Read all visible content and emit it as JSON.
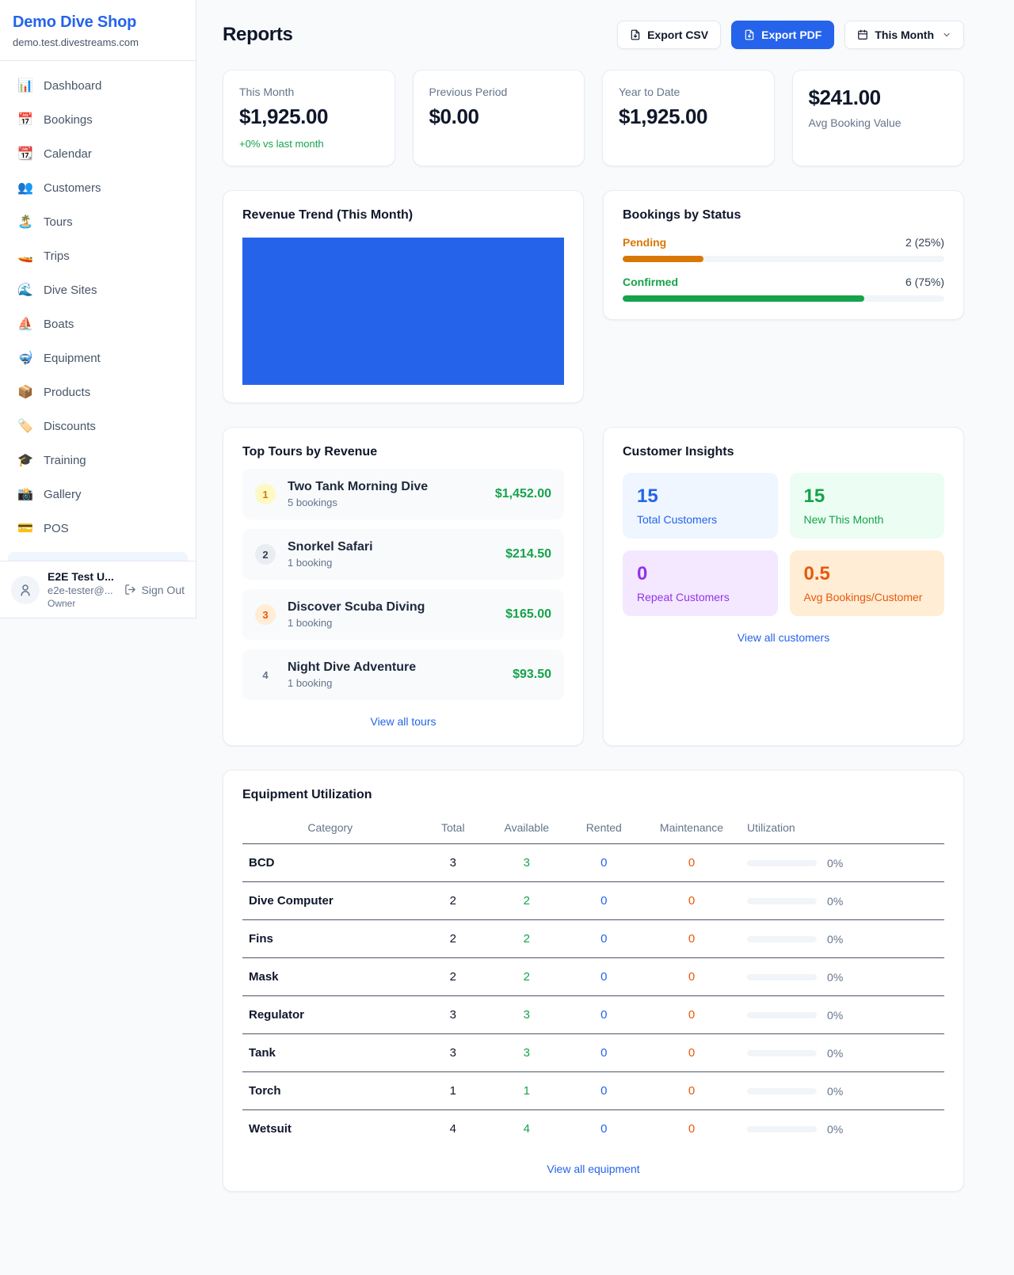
{
  "colors": {
    "accent": "#2563eb",
    "success": "#16a34a",
    "pending": "#d97706",
    "orange": "#ea580c",
    "purple": "#9333ea"
  },
  "sidebar": {
    "title": "Demo Dive Shop",
    "subtitle": "demo.test.divestreams.com",
    "nav": [
      {
        "icon": "📊",
        "label": "Dashboard"
      },
      {
        "icon": "📅",
        "label": "Bookings"
      },
      {
        "icon": "📆",
        "label": "Calendar"
      },
      {
        "icon": "👥",
        "label": "Customers"
      },
      {
        "icon": "🏝️",
        "label": "Tours"
      },
      {
        "icon": "🚤",
        "label": "Trips"
      },
      {
        "icon": "🌊",
        "label": "Dive Sites"
      },
      {
        "icon": "⛵",
        "label": "Boats"
      },
      {
        "icon": "🤿",
        "label": "Equipment"
      },
      {
        "icon": "📦",
        "label": "Products"
      },
      {
        "icon": "🏷️",
        "label": "Discounts"
      },
      {
        "icon": "🎓",
        "label": "Training"
      },
      {
        "icon": "📸",
        "label": "Gallery"
      },
      {
        "icon": "💳",
        "label": "POS"
      }
    ],
    "user": {
      "name": "E2E Test U...",
      "email": "e2e-tester@...",
      "role": "Owner",
      "sign_out": "Sign Out"
    }
  },
  "header": {
    "title": "Reports",
    "export_csv": "Export CSV",
    "export_pdf": "Export PDF",
    "period": "This Month"
  },
  "stats": [
    {
      "label": "This Month",
      "value": "$1,925.00",
      "delta": "+0% vs last month",
      "variant": ""
    },
    {
      "label": "Previous Period",
      "value": "$0.00",
      "variant": ""
    },
    {
      "label": "Year to Date",
      "value": "$1,925.00",
      "variant": ""
    },
    {
      "label": "Avg Booking Value",
      "value": "$241.00",
      "variant": "reverse"
    }
  ],
  "revenue_trend": {
    "title": "Revenue Trend (This Month)",
    "chart_data": {
      "type": "area",
      "fill_color": "#2563eb",
      "note": "solid filled plot area, no visible axes, ticks or labels"
    }
  },
  "bookings_by_status": {
    "title": "Bookings by Status",
    "rows": [
      {
        "label": "Pending",
        "count": "2 (25%)",
        "pct": 25,
        "tone": "tone-pending"
      },
      {
        "label": "Confirmed",
        "count": "6 (75%)",
        "pct": 75,
        "tone": "tone-confirmed"
      }
    ]
  },
  "top_tours": {
    "title": "Top Tours by Revenue",
    "items": [
      {
        "rank": "1",
        "badge": "badge-1",
        "name": "Two Tank Morning Dive",
        "bookings": "5 bookings",
        "revenue": "$1,452.00"
      },
      {
        "rank": "2",
        "badge": "badge-2",
        "name": "Snorkel Safari",
        "bookings": "1 booking",
        "revenue": "$214.50"
      },
      {
        "rank": "3",
        "badge": "badge-3",
        "name": "Discover Scuba Diving",
        "bookings": "1 booking",
        "revenue": "$165.00"
      },
      {
        "rank": "4",
        "badge": "badge-4",
        "name": "Night Dive Adventure",
        "bookings": "1 booking",
        "revenue": "$93.50"
      }
    ],
    "view_all": "View all tours"
  },
  "customer_insights": {
    "title": "Customer Insights",
    "boxes": [
      {
        "value": "15",
        "label": "Total Customers",
        "tone": "tone-blue"
      },
      {
        "value": "15",
        "label": "New This Month",
        "tone": "tone-green"
      },
      {
        "value": "0",
        "label": "Repeat Customers",
        "tone": "tone-purple"
      },
      {
        "value": "0.5",
        "label": "Avg Bookings/Customer",
        "tone": "tone-orange"
      }
    ],
    "view_all": "View all customers"
  },
  "equipment": {
    "title": "Equipment Utilization",
    "headers": [
      "Category",
      "Total",
      "Available",
      "Rented",
      "Maintenance",
      "Utilization"
    ],
    "rows": [
      {
        "category": "BCD",
        "total": "3",
        "available": "3",
        "rented": "0",
        "maintenance": "0",
        "utilization_pct": 0,
        "utilization_label": "0%"
      },
      {
        "category": "Dive Computer",
        "total": "2",
        "available": "2",
        "rented": "0",
        "maintenance": "0",
        "utilization_pct": 0,
        "utilization_label": "0%"
      },
      {
        "category": "Fins",
        "total": "2",
        "available": "2",
        "rented": "0",
        "maintenance": "0",
        "utilization_pct": 0,
        "utilization_label": "0%"
      },
      {
        "category": "Mask",
        "total": "2",
        "available": "2",
        "rented": "0",
        "maintenance": "0",
        "utilization_pct": 0,
        "utilization_label": "0%"
      },
      {
        "category": "Regulator",
        "total": "3",
        "available": "3",
        "rented": "0",
        "maintenance": "0",
        "utilization_pct": 0,
        "utilization_label": "0%"
      },
      {
        "category": "Tank",
        "total": "3",
        "available": "3",
        "rented": "0",
        "maintenance": "0",
        "utilization_pct": 0,
        "utilization_label": "0%"
      },
      {
        "category": "Torch",
        "total": "1",
        "available": "1",
        "rented": "0",
        "maintenance": "0",
        "utilization_pct": 0,
        "utilization_label": "0%"
      },
      {
        "category": "Wetsuit",
        "total": "4",
        "available": "4",
        "rented": "0",
        "maintenance": "0",
        "utilization_pct": 0,
        "utilization_label": "0%"
      }
    ],
    "view_all": "View all equipment"
  }
}
